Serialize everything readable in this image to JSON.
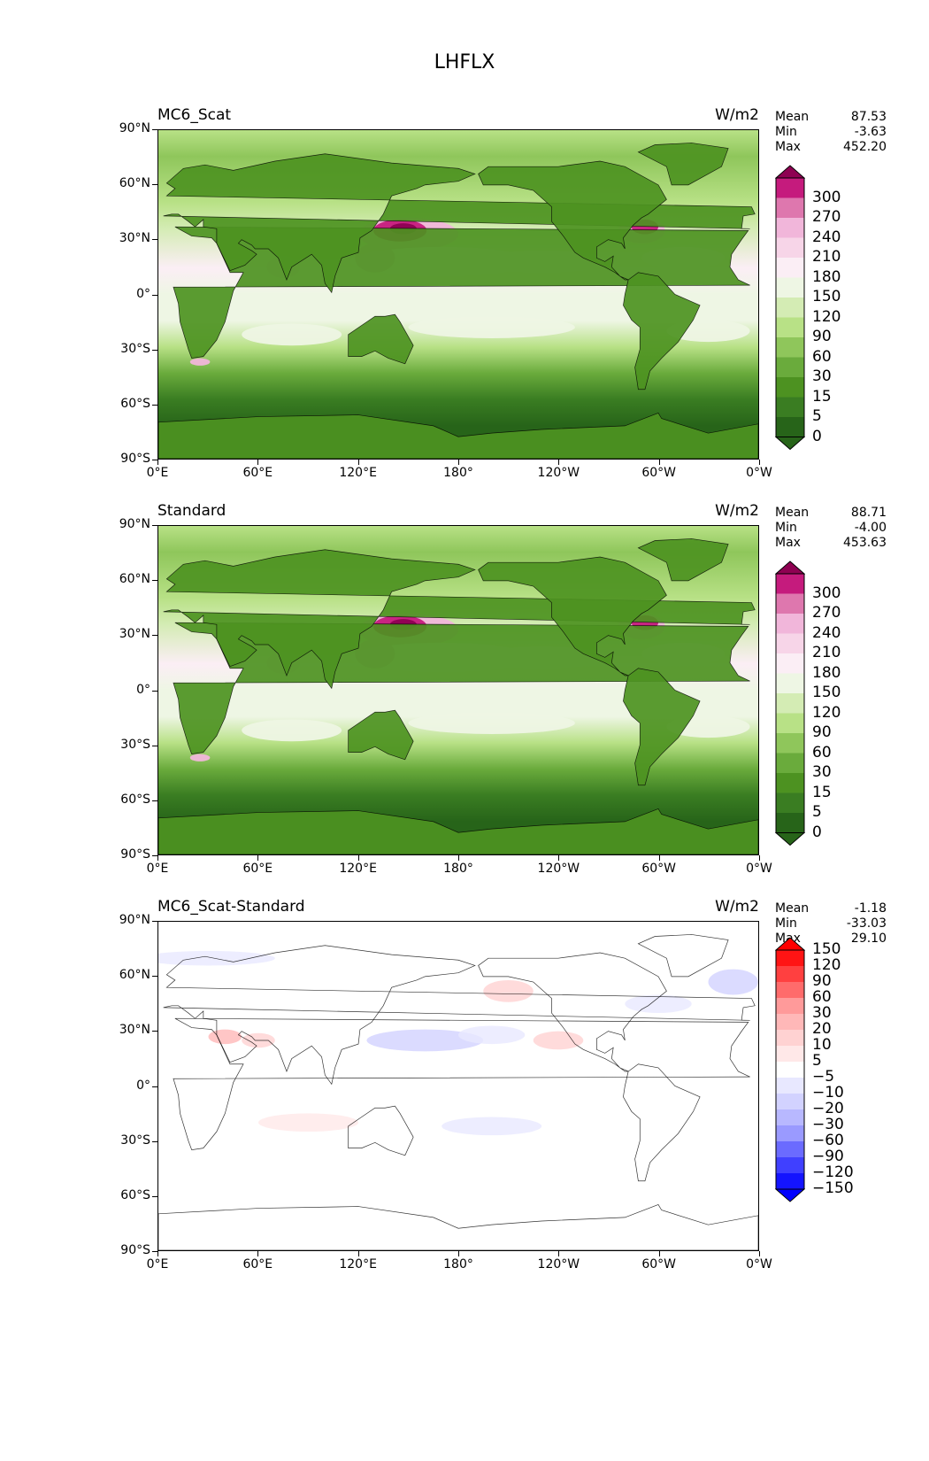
{
  "figure_title": "LHFLX",
  "lat_labels": [
    "90°N",
    "60°N",
    "30°N",
    "0°",
    "30°S",
    "60°S",
    "90°S"
  ],
  "lon_labels": [
    "0°E",
    "60°E",
    "120°E",
    "180°",
    "120°W",
    "60°W",
    "0°W"
  ],
  "panels": [
    {
      "title": "MC6_Scat",
      "units": "W/m2",
      "stats": [
        {
          "label": "Mean",
          "value": "87.53"
        },
        {
          "label": "Min",
          "value": "-3.63"
        },
        {
          "label": "Max",
          "value": "452.20"
        }
      ],
      "colorbar": {
        "levels": [
          "0",
          "5",
          "15",
          "30",
          "60",
          "90",
          "120",
          "150",
          "180",
          "210",
          "240",
          "270",
          "300"
        ],
        "colors": [
          "#276419",
          "#3a7d22",
          "#4d9221",
          "#6aab3c",
          "#8fc65b",
          "#b8e186",
          "#d4ecb4",
          "#eef6e4",
          "#fbeef5",
          "#f7d5e8",
          "#f1b6da",
          "#de77ae",
          "#c51b7d"
        ],
        "over_color": "#8e0152",
        "under_color": "#276419"
      }
    },
    {
      "title": "Standard",
      "units": "W/m2",
      "stats": [
        {
          "label": "Mean",
          "value": "88.71"
        },
        {
          "label": "Min",
          "value": "-4.00"
        },
        {
          "label": "Max",
          "value": "453.63"
        }
      ],
      "colorbar": {
        "levels": [
          "0",
          "5",
          "15",
          "30",
          "60",
          "90",
          "120",
          "150",
          "180",
          "210",
          "240",
          "270",
          "300"
        ],
        "colors": [
          "#276419",
          "#3a7d22",
          "#4d9221",
          "#6aab3c",
          "#8fc65b",
          "#b8e186",
          "#d4ecb4",
          "#eef6e4",
          "#fbeef5",
          "#f7d5e8",
          "#f1b6da",
          "#de77ae",
          "#c51b7d"
        ],
        "over_color": "#8e0152",
        "under_color": "#276419"
      }
    },
    {
      "title": "MC6_Scat-Standard",
      "units": "W/m2",
      "stats": [
        {
          "label": "Mean",
          "value": "-1.18"
        },
        {
          "label": "Min",
          "value": "-33.03"
        },
        {
          "label": "Max",
          "value": "29.10"
        }
      ],
      "colorbar": {
        "levels": [
          "−150",
          "−120",
          "−90",
          "−60",
          "−30",
          "−20",
          "−10",
          "−5",
          "5",
          "10",
          "20",
          "30",
          "60",
          "90",
          "120",
          "150"
        ],
        "colors": [
          "#1414ff",
          "#4040ff",
          "#6b6bff",
          "#9a9aff",
          "#b8b8ff",
          "#d2d2ff",
          "#e8e8ff",
          "#ffffff",
          "#ffe8e8",
          "#ffd2d2",
          "#ffb8b8",
          "#ff9a9a",
          "#ff6b6b",
          "#ff4040",
          "#ff1414"
        ],
        "over_color": "#ff0000",
        "under_color": "#0000ff"
      }
    }
  ]
}
